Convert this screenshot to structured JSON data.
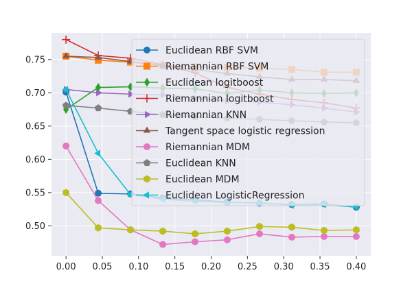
{
  "chart_data": {
    "type": "line",
    "title": "",
    "xlabel": "",
    "ylabel": "",
    "x": [
      0.0,
      0.0444,
      0.0889,
      0.1333,
      0.1778,
      0.2222,
      0.2667,
      0.3111,
      0.3556,
      0.4
    ],
    "xlim": [
      -0.02,
      0.42
    ],
    "ylim": [
      0.455,
      0.79
    ],
    "xticks": [
      "0.00",
      "0.05",
      "0.10",
      "0.15",
      "0.20",
      "0.25",
      "0.30",
      "0.35",
      "0.40"
    ],
    "xtick_values": [
      0.0,
      0.05,
      0.1,
      0.15,
      0.2,
      0.25,
      0.3,
      0.35,
      0.4
    ],
    "yticks": [
      "0.50",
      "0.55",
      "0.60",
      "0.65",
      "0.70",
      "0.75"
    ],
    "ytick_values": [
      0.5,
      0.55,
      0.6,
      0.65,
      0.7,
      0.75
    ],
    "grid": true,
    "background": "#eaeaf2",
    "legend_position": "top-right",
    "series": [
      {
        "name": "Euclidean RBF SVM",
        "color": "#1f77b4",
        "marker": "circle",
        "values": [
          0.701,
          0.549,
          0.548,
          0.542,
          0.539,
          0.536,
          0.534,
          0.532,
          0.533,
          0.528
        ]
      },
      {
        "name": "Riemannian RBF SVM",
        "color": "#ff7f0e",
        "marker": "square",
        "values": [
          0.755,
          0.749,
          0.746,
          0.741,
          0.739,
          0.738,
          0.737,
          0.735,
          0.731,
          0.731
        ]
      },
      {
        "name": "Euclidean logitboost",
        "color": "#2ca02c",
        "marker": "thin-diamond",
        "values": [
          0.675,
          0.708,
          0.709,
          0.707,
          0.706,
          0.699,
          0.704,
          0.7,
          0.699,
          0.7
        ]
      },
      {
        "name": "Riemannian logitboost",
        "color": "#d62728",
        "marker": "plus",
        "values": [
          0.78,
          0.756,
          0.752,
          0.742,
          0.73,
          0.708,
          0.698,
          0.69,
          0.685,
          0.677
        ]
      },
      {
        "name": "Riemannian KNN",
        "color": "#9467bd",
        "marker": "triangle-right",
        "values": [
          0.705,
          0.7,
          0.698,
          0.697,
          0.692,
          0.688,
          0.686,
          0.682,
          0.677,
          0.671
        ]
      },
      {
        "name": "Tangent space logistic regression",
        "color": "#8c564b",
        "marker": "triangle-up",
        "values": [
          0.755,
          0.753,
          0.747,
          0.741,
          0.735,
          0.729,
          0.724,
          0.72,
          0.72,
          0.718
        ]
      },
      {
        "name": "Riemannian MDM",
        "color": "#e377c2",
        "marker": "circle",
        "values": [
          0.62,
          0.538,
          0.494,
          0.472,
          0.476,
          0.479,
          0.488,
          0.483,
          0.484,
          0.484
        ]
      },
      {
        "name": "Euclidean KNN",
        "color": "#7f7f7f",
        "marker": "pentagon",
        "values": [
          0.681,
          0.677,
          0.672,
          0.667,
          0.664,
          0.662,
          0.66,
          0.658,
          0.656,
          0.655
        ]
      },
      {
        "name": "Euclidean MDM",
        "color": "#bcbd22",
        "marker": "hexagon",
        "values": [
          0.55,
          0.497,
          0.494,
          0.492,
          0.488,
          0.492,
          0.499,
          0.498,
          0.493,
          0.494
        ]
      },
      {
        "name": "Euclidean LogisticRegression",
        "color": "#17becf",
        "marker": "triangle-left",
        "values": [
          0.705,
          0.609,
          0.547,
          0.54,
          0.537,
          0.535,
          0.535,
          0.531,
          0.532,
          0.528
        ]
      }
    ]
  }
}
